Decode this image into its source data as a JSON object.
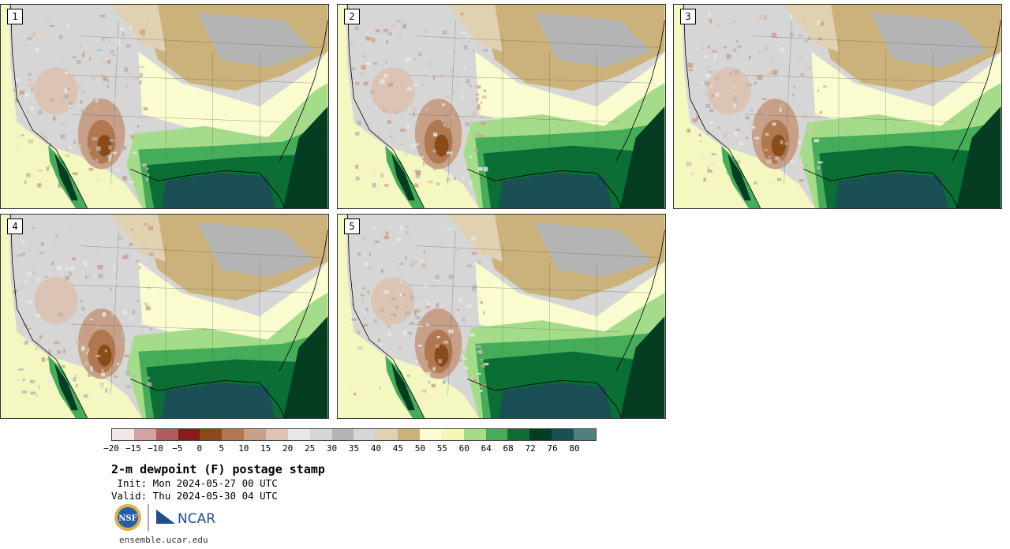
{
  "panels": [
    {
      "label": "1"
    },
    {
      "label": "2"
    },
    {
      "label": "3"
    },
    {
      "label": "4"
    },
    {
      "label": "5"
    }
  ],
  "colorbar": {
    "colors": [
      "#f3e6e6",
      "#d4a2a2",
      "#b05c5c",
      "#8c1a1a",
      "#8a4b18",
      "#b07850",
      "#c8a088",
      "#dcc4b4",
      "#e8e8e8",
      "#d6d6d6",
      "#b4b4b4",
      "#d6d6d6",
      "#e0d2b0",
      "#cbb27a",
      "#fbfbd0",
      "#f4f7b8",
      "#a5dc8a",
      "#45ad5a",
      "#0a6e35",
      "#053d22",
      "#1a4f55",
      "#4f7f7f"
    ],
    "tick_labels": [
      "−20",
      "−15",
      "−10",
      "−5",
      "0",
      "5",
      "10",
      "15",
      "20",
      "25",
      "30",
      "35",
      "40",
      "45",
      "50",
      "55",
      "60",
      "64",
      "68",
      "72",
      "76",
      "80"
    ]
  },
  "title": "2-m dewpoint (F) postage stamp",
  "init_line": " Init: Mon 2024-05-27 00 UTC",
  "valid_line": "Valid: Thu 2024-05-30 04 UTC",
  "logos": {
    "nsf": "NSF",
    "ncar": "NCAR"
  },
  "url": "ensemble.ucar.edu"
}
